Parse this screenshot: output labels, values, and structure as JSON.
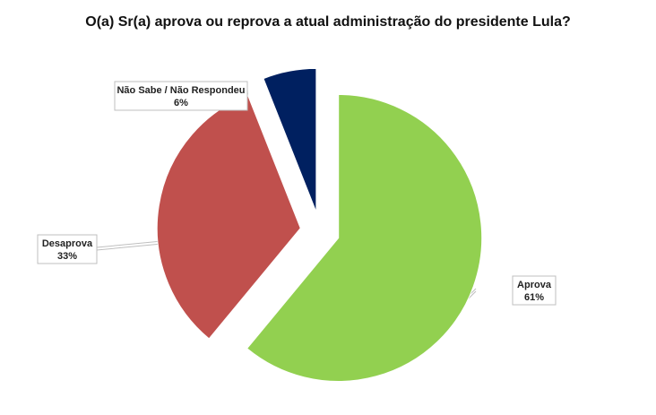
{
  "chart_data": {
    "type": "pie",
    "title": "O(a) Sr(a) aprova ou reprova a atual administração do presidente Lula?",
    "slices": [
      {
        "label": "Aprova",
        "value": 61,
        "display": "61%",
        "color": "#92d050"
      },
      {
        "label": "Desaprova",
        "value": 33,
        "display": "33%",
        "color": "#c0504d"
      },
      {
        "label": "Não Sabe / Não Respondeu",
        "value": 6,
        "display": "6%",
        "color": "#002060"
      }
    ],
    "legend": "none",
    "exploded": true
  }
}
